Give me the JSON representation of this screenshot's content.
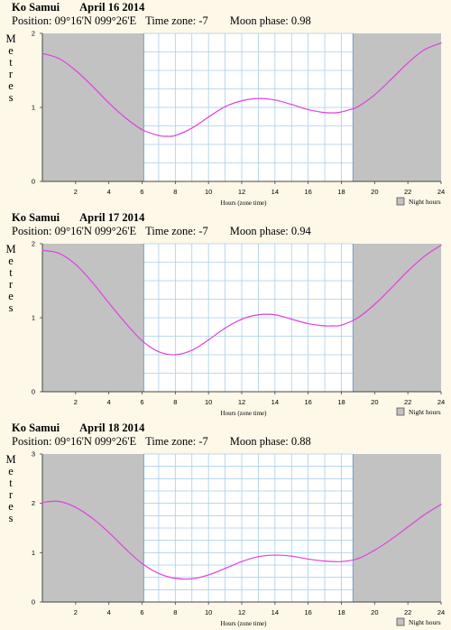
{
  "colors": {
    "background": "#fdf8e8",
    "night": "#c2c2c2",
    "day": "#ffffff",
    "grid": "#a9cde8",
    "curve": "#e040e0"
  },
  "chart_data": [
    {
      "type": "line",
      "location": "Ko Samui",
      "date": "April 16 2014",
      "position": "Position: 09°16'N 099°26'E",
      "timezone": "Time zone: -7",
      "moon_phase": "Moon phase: 0.98",
      "ylabel": "Metres",
      "xlabel": "Hours (zone time)",
      "legend": "Night hours",
      "xlim": [
        0,
        24
      ],
      "ylim": [
        0,
        2
      ],
      "yticks": [
        0,
        1,
        2
      ],
      "xticks": [
        2,
        4,
        6,
        8,
        10,
        12,
        14,
        16,
        18,
        20,
        22,
        24
      ],
      "night_before": 6.1,
      "night_after": 18.7,
      "x": [
        0,
        1,
        2,
        3,
        4,
        5,
        6,
        7,
        7.5,
        8,
        9,
        10,
        11,
        12,
        13,
        14,
        15,
        16,
        17,
        17.8,
        18.5,
        19,
        20,
        21,
        22,
        23,
        24
      ],
      "y": [
        1.73,
        1.66,
        1.5,
        1.29,
        1.06,
        0.86,
        0.7,
        0.62,
        0.61,
        0.62,
        0.72,
        0.87,
        1.01,
        1.09,
        1.12,
        1.1,
        1.04,
        0.97,
        0.93,
        0.93,
        0.97,
        1.01,
        1.17,
        1.38,
        1.6,
        1.78,
        1.87
      ]
    },
    {
      "type": "line",
      "location": "Ko Samui",
      "date": "April 17 2014",
      "position": "Position: 09°16'N 099°26'E",
      "timezone": "Time zone: -7",
      "moon_phase": "Moon phase: 0.94",
      "ylabel": "Metres",
      "xlabel": "Hours (zone time)",
      "legend": "Night hours",
      "xlim": [
        0,
        24
      ],
      "ylim": [
        0,
        2
      ],
      "yticks": [
        0,
        1,
        2
      ],
      "xticks": [
        2,
        4,
        6,
        8,
        10,
        12,
        14,
        16,
        18,
        20,
        22,
        24
      ],
      "night_before": 6.1,
      "night_after": 18.7,
      "x": [
        0,
        1,
        2,
        3,
        4,
        5,
        6,
        7,
        8,
        9,
        10,
        11,
        12,
        13,
        14,
        15,
        16,
        17,
        17.5,
        18,
        19,
        20,
        21,
        22,
        23,
        24
      ],
      "y": [
        1.91,
        1.87,
        1.72,
        1.48,
        1.2,
        0.93,
        0.69,
        0.54,
        0.5,
        0.56,
        0.7,
        0.86,
        0.98,
        1.04,
        1.04,
        0.98,
        0.92,
        0.89,
        0.89,
        0.9,
        1.0,
        1.18,
        1.4,
        1.63,
        1.83,
        1.98
      ]
    },
    {
      "type": "line",
      "location": "Ko Samui",
      "date": "April 18 2014",
      "position": "Position: 09°16'N 099°26'E",
      "timezone": "Time zone: -7",
      "moon_phase": "Moon phase: 0.88",
      "ylabel": "Metres",
      "xlabel": "Hours (zone time)",
      "legend": "Night hours",
      "xlim": [
        0,
        24
      ],
      "ylim": [
        0,
        3
      ],
      "yticks": [
        0,
        1,
        2,
        3
      ],
      "xticks": [
        2,
        4,
        6,
        8,
        10,
        12,
        14,
        16,
        18,
        20,
        22,
        24
      ],
      "night_before": 6.1,
      "night_after": 18.7,
      "x": [
        0,
        1,
        2,
        3,
        4,
        5,
        6,
        7,
        8,
        9,
        10,
        11,
        12,
        13,
        14,
        15,
        16,
        17,
        18,
        19,
        20,
        21,
        22,
        23,
        24
      ],
      "y": [
        2.02,
        2.04,
        1.92,
        1.7,
        1.41,
        1.08,
        0.78,
        0.58,
        0.48,
        0.47,
        0.55,
        0.68,
        0.82,
        0.92,
        0.95,
        0.93,
        0.87,
        0.83,
        0.82,
        0.88,
        1.05,
        1.27,
        1.52,
        1.77,
        1.98
      ]
    }
  ]
}
